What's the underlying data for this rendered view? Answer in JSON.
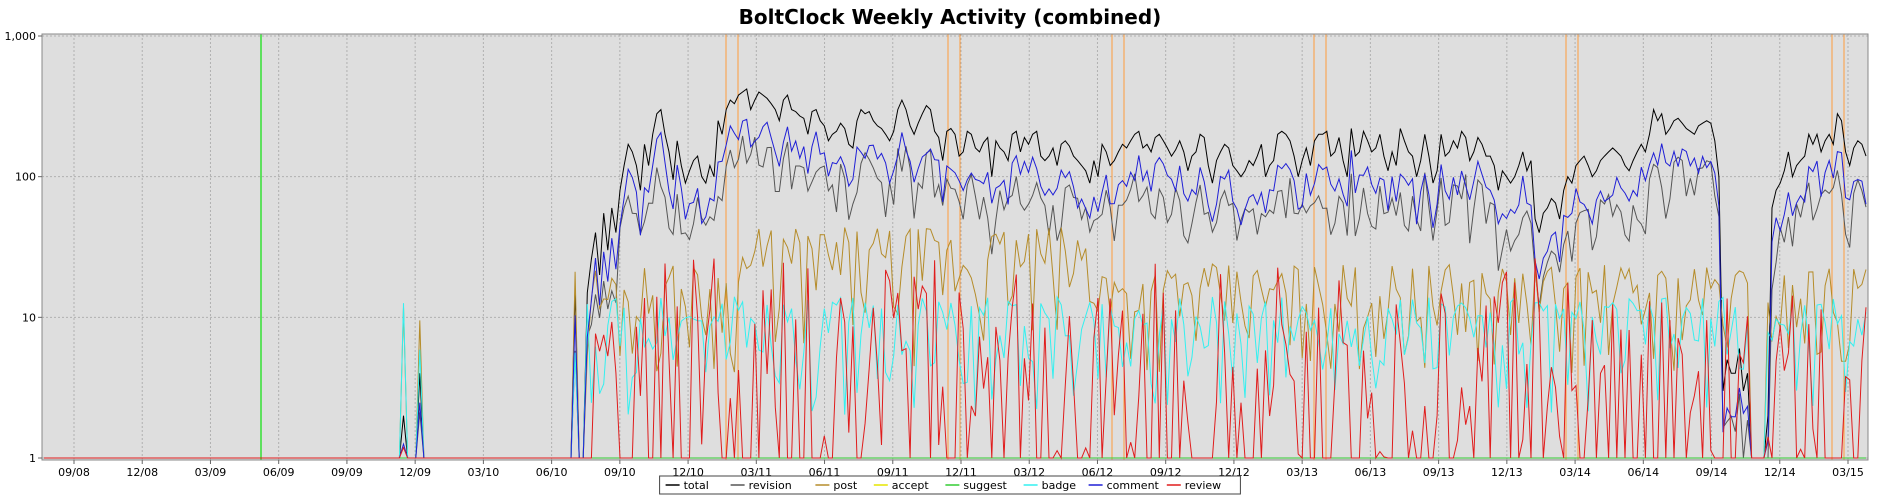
{
  "chart_data": {
    "type": "line",
    "title": "BoltClock Weekly Activity (combined)",
    "xlabel": "",
    "ylabel": "",
    "y_scale": "log",
    "ylim": [
      1,
      1000
    ],
    "y_ticks": [
      "1",
      "10",
      "100",
      "1,000"
    ],
    "x_ticks": [
      "09/08",
      "12/08",
      "03/09",
      "06/09",
      "09/09",
      "12/09",
      "03/10",
      "06/10",
      "09/10",
      "12/10",
      "03/11",
      "06/11",
      "09/11",
      "12/11",
      "03/12",
      "06/12",
      "09/12",
      "12/12",
      "03/13",
      "06/13",
      "09/13",
      "12/13",
      "03/14",
      "06/14",
      "09/14",
      "12/14",
      "03/15"
    ],
    "grid": true,
    "legend_position": "bottom",
    "plot_background": "#dedede",
    "series": [
      {
        "name": "total",
        "color": "#000000",
        "values": [
          1,
          1,
          1,
          1,
          1,
          1,
          1,
          1,
          1,
          1,
          1,
          1,
          1,
          1,
          1,
          1,
          1,
          1,
          1,
          1,
          1,
          1,
          1,
          1,
          1,
          1,
          1,
          1,
          1,
          1,
          1,
          1,
          1,
          1,
          1,
          1,
          1,
          1,
          1,
          1,
          1,
          1,
          1,
          1,
          1,
          1,
          1,
          1,
          1,
          1,
          1,
          1,
          1,
          1,
          1,
          1,
          1,
          1,
          1,
          1,
          1,
          1,
          1,
          1,
          1,
          1,
          1,
          1,
          1,
          1,
          1,
          1,
          1,
          1,
          1,
          1,
          1,
          1,
          1,
          1,
          1,
          1,
          1,
          1,
          1,
          1,
          1,
          1,
          2,
          1,
          1,
          1,
          4,
          1,
          1,
          1,
          1,
          1,
          1,
          1,
          1,
          1,
          1,
          1,
          1,
          1,
          1,
          1,
          1,
          1,
          1,
          1,
          1,
          1,
          1,
          1,
          1,
          1,
          1,
          1,
          1,
          1,
          1,
          1,
          1,
          1,
          1,
          1,
          1,
          1,
          16,
          1,
          1,
          15,
          26,
          40,
          20,
          55,
          30,
          60,
          40,
          80,
          120,
          170,
          150,
          120,
          80,
          170,
          120,
          200,
          280,
          300,
          200,
          150,
          95,
          180,
          120,
          90,
          110,
          130,
          140,
          100,
          90,
          120,
          100,
          250,
          200,
          300,
          350,
          330,
          380,
          400,
          420,
          300,
          350,
          400,
          380,
          360,
          330,
          300,
          250,
          350,
          380,
          300,
          290,
          270,
          260,
          200,
          290,
          300,
          250,
          230,
          180,
          200,
          210,
          240,
          220,
          170,
          160,
          250,
          300,
          280,
          290,
          250,
          230,
          220,
          200,
          180,
          210,
          300,
          350,
          300,
          230,
          200,
          240,
          280,
          320,
          300,
          210,
          190,
          130,
          210,
          220,
          200,
          140,
          150,
          210,
          200,
          160,
          150,
          175,
          190,
          100,
          180,
          160,
          150,
          130,
          200,
          210,
          150,
          190,
          170,
          200,
          210,
          140,
          130,
          140,
          160,
          120,
          170,
          180,
          165,
          140,
          130,
          120,
          110,
          90,
          130,
          100,
          170,
          150,
          120,
          130,
          150,
          170,
          160,
          180,
          200,
          210,
          160,
          170,
          150,
          190,
          200,
          180,
          160,
          140,
          155,
          180,
          150,
          110,
          140,
          150,
          200,
          190,
          120,
          90,
          130,
          150,
          170,
          160,
          120,
          110,
          100,
          110,
          130,
          120,
          140,
          170,
          100,
          120,
          130,
          200,
          210,
          200,
          180,
          140,
          100,
          130,
          160,
          120,
          180,
          200,
          200,
          210,
          140,
          150,
          190,
          130,
          100,
          220,
          140,
          150,
          210,
          180,
          150,
          160,
          200,
          140,
          110,
          150,
          120,
          220,
          180,
          150,
          140,
          100,
          130,
          200,
          140,
          90,
          110,
          200,
          140,
          150,
          180,
          160,
          210,
          190,
          130,
          150,
          190,
          170,
          140,
          140,
          120,
          80,
          110,
          100,
          90,
          100,
          120,
          150,
          110,
          130,
          50,
          40,
          55,
          60,
          70,
          65,
          50,
          80,
          100,
          90,
          120,
          130,
          140,
          120,
          100,
          110,
          130,
          140,
          150,
          160,
          150,
          140,
          120,
          110,
          130,
          150,
          170,
          150,
          200,
          300,
          250,
          280,
          200,
          220,
          250,
          260,
          240,
          220,
          210,
          200,
          230,
          240,
          250,
          240,
          180,
          100,
          3,
          5,
          4,
          4,
          6,
          3,
          4,
          1,
          1,
          1,
          1,
          2,
          60,
          80,
          90,
          110,
          150,
          100,
          120,
          130,
          140,
          200,
          170,
          200,
          150,
          180,
          200,
          170,
          280,
          250,
          150,
          120,
          160,
          180,
          170,
          140
        ],
        "type": "log"
      },
      {
        "name": "revision",
        "color": "#555555",
        "values": []
      },
      {
        "name": "post",
        "color": "#b58c2a",
        "values": []
      },
      {
        "name": "accept",
        "color": "#e6e600",
        "values": []
      },
      {
        "name": "suggest",
        "color": "#33cc33",
        "values": []
      },
      {
        "name": "badge",
        "color": "#33f0f0",
        "values": []
      },
      {
        "name": "comment",
        "color": "#1f1fd6",
        "values": []
      },
      {
        "name": "review",
        "color": "#e01c1c",
        "values": []
      }
    ]
  }
}
